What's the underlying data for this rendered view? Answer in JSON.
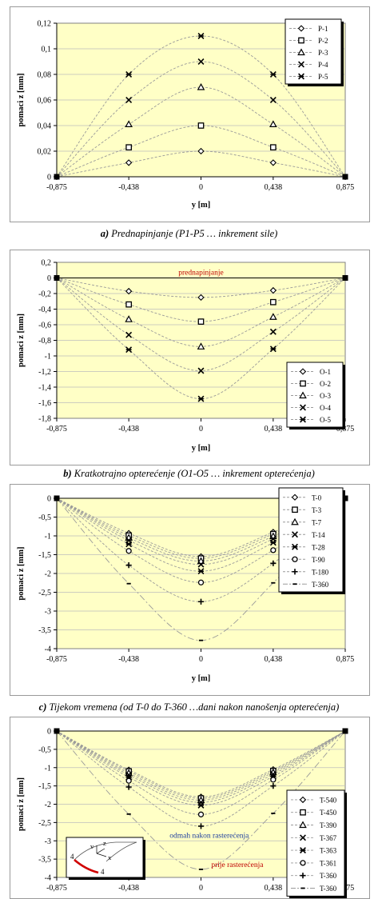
{
  "captions": [
    {
      "letter": "a)",
      "text": " Prednapinjanje (P1-P5 … inkrement sile)"
    },
    {
      "letter": "b)",
      "text": " Kratkotrajno opterećenje (O1-O5 … inkrement opterećenja)"
    },
    {
      "letter": "c)",
      "text": " Tijekom vremena (od T-0 do T-360 …dani nakon nanošenja opterećenja)"
    }
  ],
  "chart_data": [
    {
      "type": "scatter",
      "xlabel": "y [m]",
      "ylabel": "pomaci z [mm]",
      "xticks": [
        "-0,875",
        "-0,438",
        "0",
        "0,438",
        "0,875"
      ],
      "xvals": [
        -0.875,
        -0.438,
        0,
        0.438,
        0.875
      ],
      "ylim": [
        0,
        0.12
      ],
      "yticks": [
        0,
        0.02,
        0.04,
        0.06,
        0.08,
        0.1,
        0.12
      ],
      "ytick_labels": [
        "0",
        "0,02",
        "0,04",
        "0,06",
        "0,08",
        "0,1",
        "0,12"
      ],
      "grid": "horizontal",
      "legend_position": "top-right",
      "annotations": [],
      "series": [
        {
          "name": "P-1",
          "marker": "diamond",
          "values": [
            0,
            0.011,
            0.02,
            0.011,
            0
          ]
        },
        {
          "name": "P-2",
          "marker": "square",
          "values": [
            0,
            0.023,
            0.04,
            0.023,
            0
          ]
        },
        {
          "name": "P-3",
          "marker": "triangle",
          "values": [
            0,
            0.041,
            0.07,
            0.041,
            0
          ]
        },
        {
          "name": "P-4",
          "marker": "x",
          "values": [
            0,
            0.06,
            0.09,
            0.06,
            0
          ]
        },
        {
          "name": "P-5",
          "marker": "asterisk",
          "values": [
            0,
            0.08,
            0.11,
            0.08,
            0
          ]
        }
      ]
    },
    {
      "type": "scatter",
      "xlabel": "y [m]",
      "ylabel": "pomaci z [mm]",
      "xticks": [
        "-0,875",
        "-0,438",
        "0",
        "0,438",
        "0,875"
      ],
      "xvals": [
        -0.875,
        -0.438,
        0,
        0.438,
        0.875
      ],
      "ylim": [
        -1.8,
        0.2
      ],
      "yticks": [
        -1.8,
        -1.6,
        -1.4,
        -1.2,
        -1,
        -0.8,
        -0.6,
        -0.4,
        -0.2,
        0,
        0.2
      ],
      "ytick_labels": [
        "-1,8",
        "-1,6",
        "-1,4",
        "-1,2",
        "-1",
        "-0,8",
        "-0,6",
        "-0,4",
        "-0,2",
        "0",
        "0,2"
      ],
      "grid": "horizontal",
      "legend_position": "bottom-right",
      "annotations": [
        {
          "text": "prednapinjanje",
          "x": 0,
          "y": 0.04,
          "color": "#c00000"
        }
      ],
      "series": [
        {
          "name": "O-1",
          "marker": "diamond",
          "values": [
            0,
            -0.17,
            -0.25,
            -0.16,
            0
          ]
        },
        {
          "name": "O-2",
          "marker": "square",
          "values": [
            0,
            -0.34,
            -0.56,
            -0.31,
            0
          ]
        },
        {
          "name": "O-3",
          "marker": "triangle",
          "values": [
            0,
            -0.53,
            -0.88,
            -0.5,
            0
          ]
        },
        {
          "name": "O-4",
          "marker": "x",
          "values": [
            0,
            -0.73,
            -1.19,
            -0.69,
            0
          ]
        },
        {
          "name": "O-5",
          "marker": "asterisk",
          "values": [
            0,
            -0.92,
            -1.55,
            -0.91,
            0
          ]
        }
      ]
    },
    {
      "type": "scatter",
      "xlabel": "y [m]",
      "ylabel": "pomaci z [mm]",
      "xticks": [
        "-0,875",
        "-0,438",
        "0",
        "0,438",
        "0,875"
      ],
      "xvals": [
        -0.875,
        -0.438,
        0,
        0.438,
        0.875
      ],
      "ylim": [
        -4,
        0
      ],
      "yticks": [
        -4,
        -3.5,
        -3,
        -2.5,
        -2,
        -1.5,
        -1,
        -0.5,
        0
      ],
      "ytick_labels": [
        "-4",
        "-3,5",
        "-3",
        "-2,5",
        "-2",
        "-1,5",
        "-1",
        "-0,5",
        "0"
      ],
      "grid": "horizontal",
      "legend_position": "top-right",
      "annotations": [],
      "series": [
        {
          "name": "T-0",
          "marker": "diamond",
          "values": [
            0,
            -0.93,
            -1.55,
            -0.9,
            0
          ]
        },
        {
          "name": "T-3",
          "marker": "square",
          "values": [
            0,
            -0.99,
            -1.6,
            -0.95,
            0
          ]
        },
        {
          "name": "T-7",
          "marker": "triangle",
          "values": [
            0,
            -1.05,
            -1.67,
            -1.01,
            0
          ]
        },
        {
          "name": "T-14",
          "marker": "x",
          "values": [
            0,
            -1.12,
            -1.76,
            -1.08,
            0
          ]
        },
        {
          "name": "T-28",
          "marker": "asterisk",
          "values": [
            0,
            -1.22,
            -1.94,
            -1.18,
            0
          ]
        },
        {
          "name": "T-90",
          "marker": "circle",
          "values": [
            0,
            -1.4,
            -2.24,
            -1.38,
            0
          ]
        },
        {
          "name": "T-180",
          "marker": "plus",
          "values": [
            0,
            -1.78,
            -2.75,
            -1.73,
            0
          ]
        },
        {
          "name": "T-360",
          "marker": "dash",
          "values": [
            0,
            -2.27,
            -3.78,
            -2.25,
            0
          ]
        }
      ]
    },
    {
      "type": "scatter",
      "xlabel": "",
      "ylabel": "pomaci z [mm]",
      "xticks": [
        "-0,875",
        "-0,438",
        "0",
        "0,438",
        "0,875"
      ],
      "xvals": [
        -0.875,
        -0.438,
        0,
        0.438,
        0.875
      ],
      "ylim": [
        -4,
        0
      ],
      "yticks": [
        -4,
        -3.5,
        -3,
        -2.5,
        -2,
        -1.5,
        -1,
        -0.5,
        0
      ],
      "ytick_labels": [
        "-4",
        "-3,5",
        "-3",
        "-2,5",
        "-2",
        "-1,5",
        "-1",
        "-0,5",
        "0"
      ],
      "grid": "horizontal",
      "legend_position": "bottom-right",
      "annotations": [
        {
          "text": "odmah nakon rasterećenja",
          "x": 0.05,
          "y": -2.92,
          "color": "#1f3f9f"
        },
        {
          "text": "prije rasterećenja",
          "x": 0.22,
          "y": -3.72,
          "color": "#c00000"
        }
      ],
      "inset_labels": [
        "v",
        "z",
        "x",
        "4",
        "4"
      ],
      "series": [
        {
          "name": "T-540",
          "marker": "diamond",
          "values": [
            0,
            -1.06,
            -1.8,
            -1.05,
            0
          ]
        },
        {
          "name": "T-450",
          "marker": "square",
          "values": [
            0,
            -1.1,
            -1.84,
            -1.09,
            0
          ]
        },
        {
          "name": "T-390",
          "marker": "triangle",
          "values": [
            0,
            -1.15,
            -1.89,
            -1.13,
            0
          ]
        },
        {
          "name": "T-367",
          "marker": "x",
          "values": [
            0,
            -1.2,
            -1.95,
            -1.18,
            0
          ]
        },
        {
          "name": "T-363",
          "marker": "asterisk",
          "values": [
            0,
            -1.26,
            -2.03,
            -1.24,
            0
          ]
        },
        {
          "name": "T-361",
          "marker": "circle",
          "values": [
            0,
            -1.36,
            -2.28,
            -1.33,
            0
          ]
        },
        {
          "name": "T-360",
          "marker": "plus",
          "values": [
            0,
            -1.53,
            -2.6,
            -1.5,
            0
          ]
        },
        {
          "name": "T-360",
          "marker": "dash",
          "values": [
            0,
            -2.27,
            -3.78,
            -2.25,
            0
          ]
        }
      ]
    }
  ]
}
